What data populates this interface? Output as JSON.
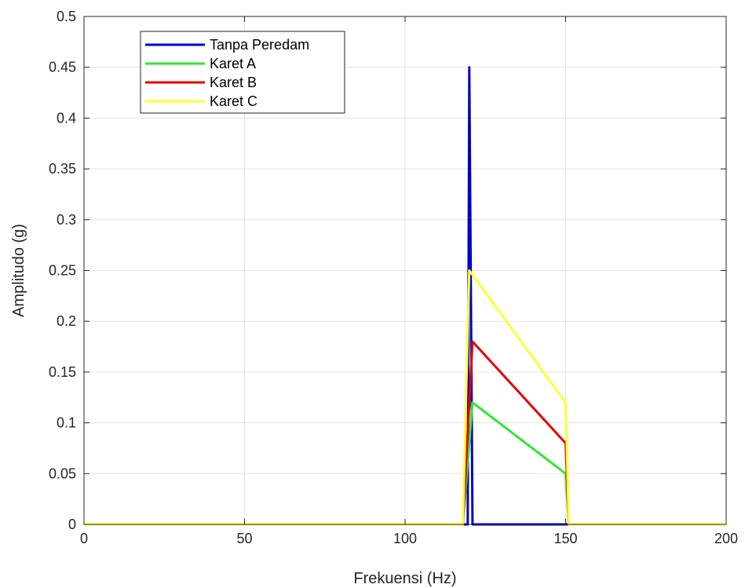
{
  "chart_data": {
    "type": "line",
    "title": "",
    "xlabel": "Frekuensi (Hz)",
    "ylabel": "Amplitudo (g)",
    "xlim": [
      0,
      200
    ],
    "ylim": [
      0,
      0.5
    ],
    "x_ticks": [
      0,
      50,
      100,
      150,
      200
    ],
    "y_ticks": [
      0,
      0.05,
      0.1,
      0.15,
      0.2,
      0.25,
      0.3,
      0.35,
      0.4,
      0.45,
      0.5
    ],
    "x_tick_labels": [
      "0",
      "50",
      "100",
      "150",
      "200"
    ],
    "y_tick_labels": [
      "0",
      "0.05",
      "0.1",
      "0.15",
      "0.2",
      "0.25",
      "0.3",
      "0.35",
      "0.4",
      "0.45",
      "0.5"
    ],
    "grid": true,
    "legend_position": "top-left",
    "series": [
      {
        "name": "Tanpa Peredam",
        "color": "#0000CC",
        "points": [
          [
            0,
            0
          ],
          [
            119.5,
            0
          ],
          [
            120,
            0.45
          ],
          [
            121,
            0
          ],
          [
            150,
            0
          ],
          [
            200,
            0
          ]
        ]
      },
      {
        "name": "Karet A",
        "color": "#33E633",
        "points": [
          [
            0,
            0
          ],
          [
            118,
            0
          ],
          [
            121,
            0.12
          ],
          [
            150,
            0.05
          ],
          [
            151,
            0
          ],
          [
            200,
            0
          ]
        ]
      },
      {
        "name": "Karet B",
        "color": "#E60000",
        "points": [
          [
            0,
            0
          ],
          [
            118,
            0
          ],
          [
            121,
            0.18
          ],
          [
            150,
            0.08
          ],
          [
            151,
            0
          ],
          [
            200,
            0
          ]
        ]
      },
      {
        "name": "Karet C",
        "color": "#FFFF33",
        "points": [
          [
            0,
            0
          ],
          [
            118,
            0
          ],
          [
            120,
            0.25
          ],
          [
            150,
            0.12
          ],
          [
            151,
            0
          ],
          [
            200,
            0
          ]
        ]
      }
    ]
  }
}
